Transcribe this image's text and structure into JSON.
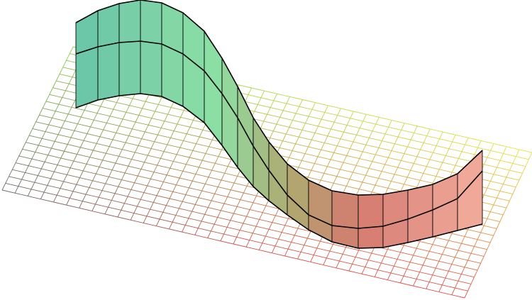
{
  "figure": {
    "kind": "3d-surface-ribbon-over-grid-plane",
    "grid": {
      "rows": 21,
      "columns": 36,
      "color_near": "#d9534f",
      "color_far_left": "#8fd14f",
      "color_far_right": "#e6e64c",
      "color_mid_left": "#6b6b6b"
    },
    "ribbon": {
      "segments": 20,
      "color_start": "#6cc6a8",
      "color_mid": "#b0a870",
      "color_end": "#f0a898",
      "edge_color": "#000000"
    }
  }
}
